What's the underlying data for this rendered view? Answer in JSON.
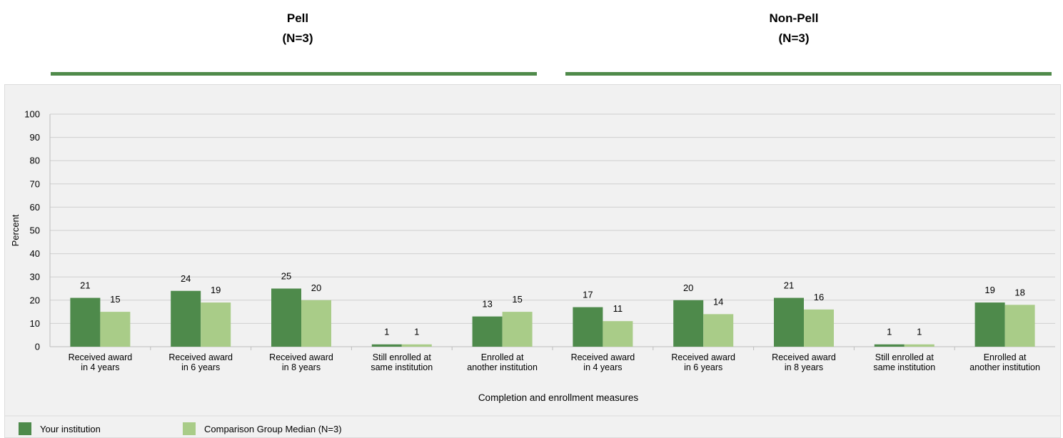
{
  "headers": [
    {
      "title": "Pell",
      "subtitle": "(N=3)"
    },
    {
      "title": "Non-Pell",
      "subtitle": "(N=3)"
    }
  ],
  "colors": {
    "primary": "#4e8a4b",
    "secondary": "#a9cc88",
    "rule": "#4f8a4a",
    "grid": "#d0d0d0"
  },
  "chart_data": {
    "type": "bar",
    "ylabel": "Percent",
    "xlabel": "Completion and enrollment measures",
    "ylim": [
      0,
      100
    ],
    "yticks": [
      0,
      10,
      20,
      30,
      40,
      50,
      60,
      70,
      80,
      90,
      100
    ],
    "grid": true,
    "legend_position": "bottom-left",
    "categories": [
      [
        "Received award",
        "in 4 years"
      ],
      [
        "Received award",
        "in 6 years"
      ],
      [
        "Received award",
        "in 8 years"
      ],
      [
        "Still enrolled at",
        "same institution"
      ],
      [
        "Enrolled at",
        "another institution"
      ],
      [
        "Received award",
        "in 4 years"
      ],
      [
        "Received award",
        "in 6 years"
      ],
      [
        "Received award",
        "in 8 years"
      ],
      [
        "Still enrolled at",
        "same institution"
      ],
      [
        "Enrolled at",
        "another institution"
      ]
    ],
    "series": [
      {
        "name": "Your institution",
        "values": [
          21,
          24,
          25,
          1,
          13,
          17,
          20,
          21,
          1,
          19
        ]
      },
      {
        "name": "Comparison Group Median (N=3)",
        "values": [
          15,
          19,
          20,
          1,
          15,
          11,
          14,
          16,
          1,
          18
        ]
      }
    ]
  }
}
